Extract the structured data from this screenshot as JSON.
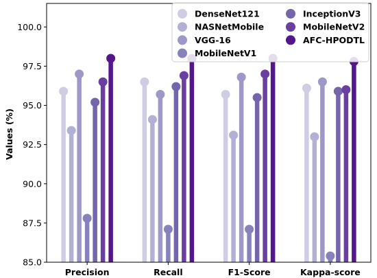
{
  "chart_data": {
    "type": "lollipop",
    "title": "",
    "xlabel": "",
    "ylabel": "Values (%)",
    "ylim": [
      85.0,
      101.5
    ],
    "yticks": [
      "85.0",
      "87.5",
      "90.0",
      "92.5",
      "95.0",
      "97.5",
      "100.0"
    ],
    "grid": false,
    "legend_position": "top-right",
    "categories": [
      "Precision",
      "Recall",
      "F1-Score",
      "Kappa-score"
    ],
    "series": [
      {
        "name": "DenseNet121",
        "color": "#cfcde4",
        "values": [
          95.9,
          96.5,
          95.7,
          96.1
        ]
      },
      {
        "name": "NASNetMobile",
        "color": "#b3b0d5",
        "values": [
          93.4,
          94.1,
          93.1,
          93.0
        ]
      },
      {
        "name": "VGG-16",
        "color": "#9d98c8",
        "values": [
          97.0,
          95.7,
          96.8,
          96.5
        ]
      },
      {
        "name": "MobileNetV1",
        "color": "#8882bc",
        "values": [
          87.8,
          87.1,
          87.1,
          85.4
        ]
      },
      {
        "name": "InceptionV3",
        "color": "#7465ad",
        "values": [
          95.2,
          96.2,
          95.5,
          95.9
        ]
      },
      {
        "name": "MobileNetV2",
        "color": "#6a3fa0",
        "values": [
          96.5,
          96.9,
          97.0,
          96.0
        ]
      },
      {
        "name": "AFC-HPODTL",
        "color": "#55158b",
        "values": [
          98.0,
          98.0,
          98.0,
          97.8
        ]
      }
    ]
  }
}
